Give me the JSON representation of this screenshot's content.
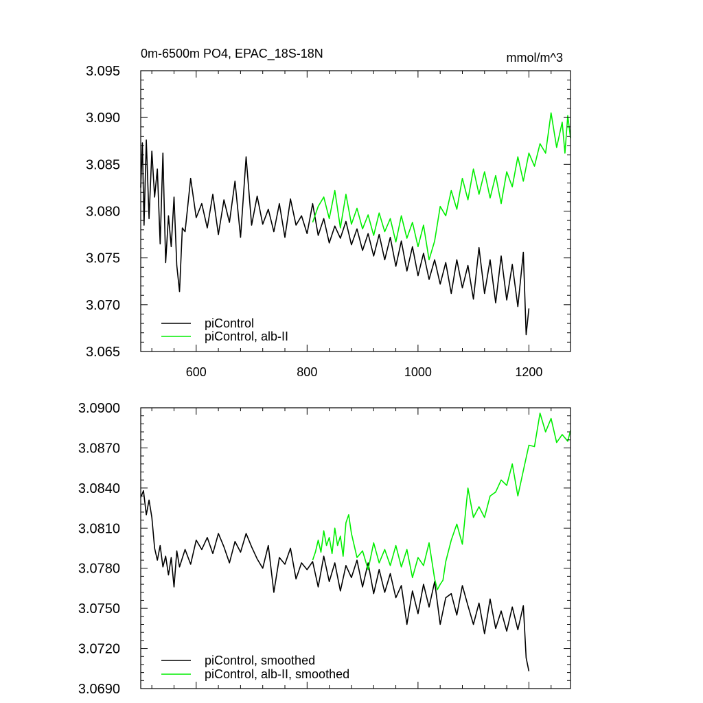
{
  "chart_data": [
    {
      "type": "line",
      "title": "0m-6500m PO4, EPAC_18S-18N",
      "units": "mmol/m^3",
      "xlim": [
        500,
        1275
      ],
      "ylim": [
        3.065,
        3.095
      ],
      "x_ticks": [
        600,
        800,
        1000,
        1200
      ],
      "x_tick_labels": [
        "600",
        "800",
        "1000",
        "1200"
      ],
      "y_ticks": [
        3.065,
        3.07,
        3.075,
        3.08,
        3.085,
        3.09,
        3.095
      ],
      "y_tick_labels": [
        "3.065",
        "3.070",
        "3.075",
        "3.080",
        "3.085",
        "3.090",
        "3.095"
      ],
      "legend_position": "bottom-left",
      "series": [
        {
          "name": "piControl",
          "color": "#000000",
          "x": [
            500,
            503,
            506,
            510,
            515,
            520,
            525,
            530,
            535,
            540,
            545,
            550,
            555,
            560,
            565,
            570,
            575,
            580,
            590,
            600,
            610,
            620,
            630,
            640,
            650,
            660,
            670,
            680,
            690,
            700,
            710,
            720,
            730,
            740,
            750,
            760,
            770,
            780,
            790,
            800,
            810,
            820,
            830,
            840,
            850,
            860,
            870,
            880,
            890,
            900,
            910,
            920,
            930,
            940,
            950,
            960,
            970,
            980,
            990,
            1000,
            1010,
            1020,
            1030,
            1040,
            1050,
            1060,
            1070,
            1080,
            1090,
            1100,
            1110,
            1120,
            1130,
            1140,
            1150,
            1160,
            1170,
            1180,
            1190,
            1195,
            1200
          ],
          "y": [
            3.0825,
            3.0873,
            3.0785,
            3.0876,
            3.0792,
            3.0864,
            3.0815,
            3.0845,
            3.0765,
            3.0862,
            3.0745,
            3.0795,
            3.0762,
            3.0815,
            3.0742,
            3.0714,
            3.0782,
            3.0778,
            3.0835,
            3.0793,
            3.0808,
            3.0782,
            3.0818,
            3.0775,
            3.0812,
            3.0788,
            3.0832,
            3.0772,
            3.0858,
            3.0785,
            3.0816,
            3.0786,
            3.0802,
            3.0778,
            3.0808,
            3.0772,
            3.0813,
            3.0785,
            3.0795,
            3.0776,
            3.0808,
            3.0774,
            3.0792,
            3.0766,
            3.0784,
            3.0771,
            3.0789,
            3.0764,
            3.0781,
            3.0758,
            3.0776,
            3.0752,
            3.0775,
            3.0748,
            3.0772,
            3.0741,
            3.0768,
            3.0736,
            3.0762,
            3.0731,
            3.0755,
            3.0727,
            3.0748,
            3.0722,
            3.0745,
            3.0712,
            3.0748,
            3.0718,
            3.0742,
            3.0706,
            3.0761,
            3.0712,
            3.0748,
            3.0702,
            3.0752,
            3.0705,
            3.0743,
            3.0698,
            3.0756,
            3.0668,
            3.0696
          ]
        },
        {
          "name": "piControl, alb-II",
          "color": "#00ee00",
          "x": [
            810,
            820,
            830,
            840,
            850,
            860,
            870,
            880,
            890,
            900,
            910,
            920,
            930,
            940,
            950,
            960,
            970,
            980,
            990,
            1000,
            1010,
            1020,
            1030,
            1040,
            1050,
            1060,
            1070,
            1080,
            1090,
            1100,
            1110,
            1120,
            1130,
            1140,
            1150,
            1160,
            1170,
            1180,
            1190,
            1200,
            1210,
            1220,
            1230,
            1240,
            1250,
            1260,
            1265,
            1270,
            1275
          ],
          "y": [
            3.0788,
            3.0805,
            3.0815,
            3.0792,
            3.0822,
            3.0782,
            3.0818,
            3.0786,
            3.0803,
            3.0781,
            3.0796,
            3.0774,
            3.0798,
            3.0778,
            3.0792,
            3.0767,
            3.0795,
            3.0771,
            3.0788,
            3.0762,
            3.0785,
            3.0748,
            3.0768,
            3.0805,
            3.0795,
            3.0822,
            3.0802,
            3.0835,
            3.0812,
            3.0845,
            3.0818,
            3.0842,
            3.0814,
            3.0838,
            3.0808,
            3.0842,
            3.0826,
            3.0858,
            3.0832,
            3.0862,
            3.0848,
            3.0872,
            3.0862,
            3.0905,
            3.0868,
            3.0895,
            3.0862,
            3.0902,
            3.0878
          ]
        }
      ]
    },
    {
      "type": "line",
      "xlim": [
        500,
        1275
      ],
      "ylim": [
        3.069,
        3.09
      ],
      "x_ticks": [
        600,
        800,
        1000,
        1200
      ],
      "y_ticks": [
        3.069,
        3.072,
        3.075,
        3.078,
        3.081,
        3.084,
        3.087,
        3.09
      ],
      "y_tick_labels": [
        "3.0690",
        "3.0720",
        "3.0750",
        "3.0780",
        "3.0810",
        "3.0840",
        "3.0870",
        "3.0900"
      ],
      "legend_position": "bottom-left",
      "series": [
        {
          "name": "piControl, smoothed",
          "color": "#000000",
          "x": [
            500,
            505,
            510,
            515,
            520,
            525,
            530,
            535,
            540,
            545,
            550,
            555,
            560,
            565,
            570,
            580,
            590,
            600,
            610,
            620,
            630,
            640,
            650,
            660,
            670,
            680,
            690,
            700,
            710,
            720,
            730,
            740,
            750,
            760,
            770,
            780,
            790,
            800,
            810,
            820,
            830,
            840,
            850,
            860,
            870,
            880,
            890,
            900,
            910,
            920,
            930,
            940,
            950,
            960,
            970,
            980,
            990,
            1000,
            1010,
            1020,
            1030,
            1040,
            1050,
            1060,
            1070,
            1080,
            1090,
            1100,
            1110,
            1120,
            1130,
            1140,
            1150,
            1160,
            1170,
            1180,
            1190,
            1195,
            1200
          ],
          "y": [
            3.0833,
            3.0838,
            3.082,
            3.0831,
            3.0818,
            3.0795,
            3.0786,
            3.0797,
            3.0781,
            3.0789,
            3.0775,
            3.0788,
            3.0766,
            3.0793,
            3.0781,
            3.0794,
            3.0783,
            3.0801,
            3.0794,
            3.0803,
            3.0791,
            3.0806,
            3.0796,
            3.0784,
            3.08,
            3.0792,
            3.0806,
            3.0796,
            3.0787,
            3.078,
            3.0797,
            3.0762,
            3.0788,
            3.0783,
            3.0795,
            3.0772,
            3.0784,
            3.0779,
            3.0785,
            3.0766,
            3.0789,
            3.077,
            3.0784,
            3.0763,
            3.0782,
            3.0773,
            3.0786,
            3.0766,
            3.0784,
            3.0761,
            3.0779,
            3.0762,
            3.0776,
            3.0758,
            3.0767,
            3.0738,
            3.0763,
            3.0746,
            3.0768,
            3.0751,
            3.077,
            3.0738,
            3.0758,
            3.0761,
            3.0745,
            3.0767,
            3.0752,
            3.0738,
            3.0754,
            3.0731,
            3.0757,
            3.0735,
            3.0748,
            3.0733,
            3.0751,
            3.0734,
            3.0752,
            3.0713,
            3.0703
          ]
        },
        {
          "name": "piControl, alb-II, smoothed",
          "color": "#00ee00",
          "x": [
            810,
            815,
            820,
            825,
            830,
            835,
            840,
            845,
            850,
            855,
            860,
            865,
            870,
            875,
            880,
            890,
            900,
            910,
            920,
            930,
            940,
            950,
            960,
            970,
            980,
            990,
            1000,
            1010,
            1020,
            1030,
            1035,
            1040,
            1045,
            1050,
            1060,
            1070,
            1080,
            1090,
            1100,
            1110,
            1120,
            1130,
            1140,
            1150,
            1160,
            1170,
            1180,
            1190,
            1200,
            1210,
            1220,
            1230,
            1240,
            1250,
            1260,
            1270,
            1275
          ],
          "y": [
            3.0786,
            3.0792,
            3.0801,
            3.0792,
            3.0808,
            3.0797,
            3.0803,
            3.0791,
            3.081,
            3.0797,
            3.0804,
            3.0789,
            3.0814,
            3.082,
            3.0806,
            3.0788,
            3.0793,
            3.0779,
            3.0799,
            3.0784,
            3.0794,
            3.0782,
            3.0797,
            3.0781,
            3.0794,
            3.0773,
            3.0788,
            3.0782,
            3.0799,
            3.0772,
            3.0764,
            3.0768,
            3.0771,
            3.0785,
            3.0801,
            3.0813,
            3.0798,
            3.084,
            3.0818,
            3.0826,
            3.0818,
            3.0834,
            3.0837,
            3.0846,
            3.0842,
            3.0858,
            3.0834,
            3.0853,
            3.0872,
            3.0871,
            3.0896,
            3.0882,
            3.0892,
            3.0874,
            3.088,
            3.0875,
            3.0883
          ]
        }
      ]
    }
  ]
}
